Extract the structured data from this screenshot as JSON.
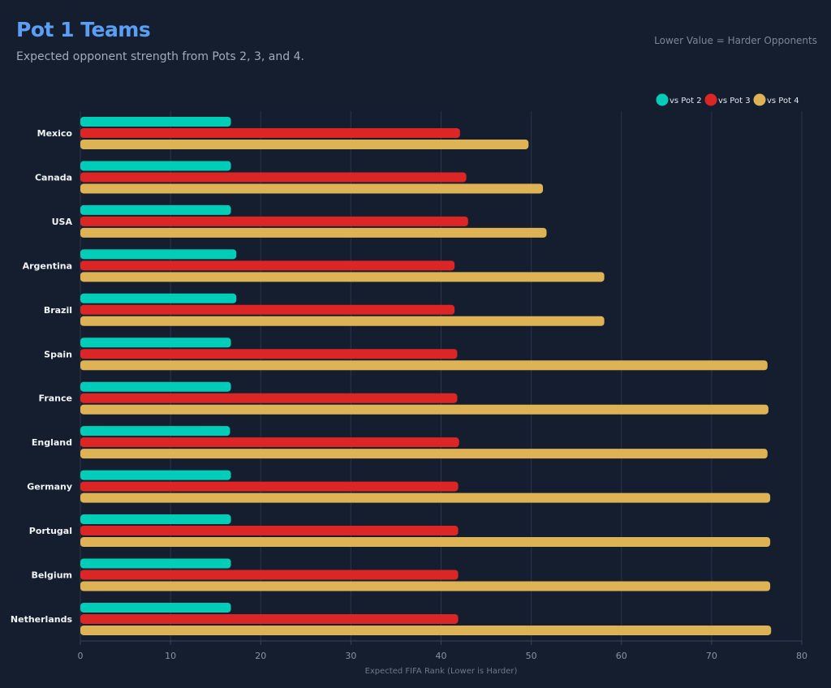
{
  "header": {
    "title": "Pot 1 Teams",
    "subtitle": "Expected opponent strength from Pots 2, 3, and 4.",
    "note": "Lower Value = Harder Opponents"
  },
  "chart_data": {
    "type": "bar",
    "orientation": "horizontal",
    "title": "Pot 1 Teams",
    "subtitle": "Expected opponent strength from Pots 2, 3, and 4.",
    "xlabel": "Expected FIFA Rank (Lower is Harder)",
    "ylabel": "",
    "xlim": [
      0,
      80
    ],
    "xticks": [
      0,
      10,
      20,
      30,
      40,
      50,
      60,
      70,
      80
    ],
    "grid": true,
    "legend_placement": "top-right",
    "categories": [
      "Mexico",
      "Canada",
      "USA",
      "Argentina",
      "Brazil",
      "Spain",
      "France",
      "England",
      "Germany",
      "Portugal",
      "Belgium",
      "Netherlands"
    ],
    "series": [
      {
        "name": "vs Pot 2",
        "color": "#00cdb8",
        "values": [
          16.7,
          16.7,
          16.7,
          17.3,
          17.3,
          16.7,
          16.7,
          16.6,
          16.7,
          16.7,
          16.7,
          16.7
        ]
      },
      {
        "name": "vs Pot 3",
        "color": "#dc2626",
        "values": [
          42.1,
          42.8,
          43.0,
          41.5,
          41.5,
          41.8,
          41.8,
          42.0,
          41.9,
          41.9,
          41.9,
          41.9
        ]
      },
      {
        "name": "vs Pot 4",
        "color": "#ddb355",
        "values": [
          49.7,
          51.3,
          51.7,
          58.1,
          58.1,
          76.2,
          76.3,
          76.2,
          76.5,
          76.5,
          76.5,
          76.6
        ]
      }
    ]
  }
}
